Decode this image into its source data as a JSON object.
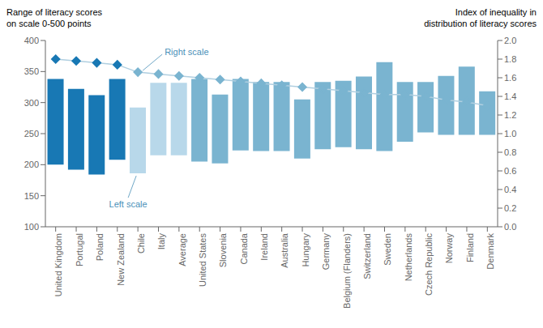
{
  "chart_data": {
    "type": "bar",
    "ylabel": "Range of literacy scores\non scale 0-500 points",
    "y2label": "Index of inequality in\ndistribution of literacy scores",
    "categories": [
      "United Kingdom",
      "Portugal",
      "Poland",
      "New Zealand",
      "Chile",
      "Italy",
      "Average",
      "United States",
      "Slovenia",
      "Canada",
      "Ireland",
      "Australia",
      "Hungary",
      "Germany",
      "Belgium (Flanders)",
      "Switzerland",
      "Sweden",
      "Netherlands",
      "Czech Republic",
      "Norway",
      "Finland",
      "Denmark"
    ],
    "series": [
      {
        "type": "bar",
        "values": [
          [
            200,
            338
          ],
          [
            192,
            322
          ],
          [
            184,
            312
          ],
          [
            208,
            338
          ],
          [
            186,
            292
          ],
          [
            215,
            332
          ],
          [
            215,
            332
          ],
          [
            205,
            338
          ],
          [
            202,
            313
          ],
          [
            223,
            338
          ],
          [
            222,
            333
          ],
          [
            222,
            333
          ],
          [
            210,
            305
          ],
          [
            225,
            333
          ],
          [
            228,
            335
          ],
          [
            225,
            342
          ],
          [
            222,
            365
          ],
          [
            237,
            333
          ],
          [
            252,
            333
          ],
          [
            248,
            343
          ],
          [
            248,
            358
          ],
          [
            248,
            318
          ]
        ],
        "colors": [
          "#1878b4",
          "#1878b4",
          "#1878b4",
          "#1878b4",
          "#b8d8ea",
          "#b8d8ea",
          "#b8d8ea",
          "#7ab4d0",
          "#7ab4d0",
          "#7ab4d0",
          "#7ab4d0",
          "#7ab4d0",
          "#7ab4d0",
          "#7ab4d0",
          "#7ab4d0",
          "#7ab4d0",
          "#7ab4d0",
          "#7ab4d0",
          "#7ab4d0",
          "#7ab4d0",
          "#7ab4d0",
          "#7ab4d0"
        ]
      },
      {
        "type": "line",
        "axis": "y2",
        "color": "#b0cfe0",
        "marker": "diamond",
        "values": [
          1.8,
          1.78,
          1.76,
          1.74,
          1.66,
          1.64,
          1.62,
          1.6,
          1.58,
          1.56,
          1.54,
          1.52,
          1.5,
          1.48,
          1.46,
          1.44,
          1.42,
          1.42,
          1.4,
          1.36,
          1.34,
          1.3
        ],
        "colors": [
          "#1878b4",
          "#1878b4",
          "#1878b4",
          "#1878b4",
          "#7ab4d0",
          "#7ab4d0",
          "#7ab4d0",
          "#7ab4d0",
          "#7ab4d0",
          "#7ab4d0",
          "#7ab4d0",
          "#7ab4d0",
          "#7ab4d0",
          "#7ab4d0",
          "#7ab4d0",
          "#7ab4d0",
          "#7ab4d0",
          "#7ab4d0",
          "#7ab4d0",
          "#7ab4d0",
          "#7ab4d0",
          "#7ab4d0"
        ]
      }
    ],
    "ylim": [
      100,
      400
    ],
    "yticks": [
      100,
      150,
      200,
      250,
      300,
      350,
      400
    ],
    "y2lim": [
      0,
      2.0
    ],
    "y2ticks": [
      {
        "value": 0,
        "label": "0.0"
      },
      0.2,
      0.4,
      0.6,
      0.8,
      {
        "value": 1.0,
        "label": "1.0"
      },
      1.2,
      1.4,
      1.6,
      1.8,
      {
        "value": 2.0,
        "label": "2.0"
      }
    ],
    "annotations": [
      {
        "text": "Right scale",
        "category": "Chile",
        "axis": "y2",
        "color": "#4a90b8"
      },
      {
        "text": "Left scale",
        "category": "Chile",
        "axis": "y",
        "color": "#4a90b8"
      }
    ],
    "grid": false
  }
}
